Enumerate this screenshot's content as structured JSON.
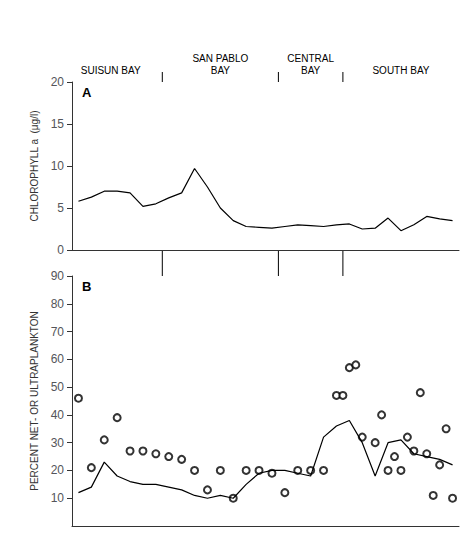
{
  "chart_data": [
    {
      "type": "line",
      "title": "A",
      "ylabel": "CHLOROPHYLL a  (μg/l)",
      "x": [
        1,
        2,
        3,
        4,
        5,
        6,
        7,
        8,
        9,
        10,
        11,
        12,
        13,
        14,
        15,
        16,
        17,
        18,
        19,
        20,
        21,
        22,
        23,
        24,
        25,
        26,
        27,
        28,
        29,
        30
      ],
      "values": [
        5.8,
        6.3,
        7.0,
        7.0,
        6.8,
        5.2,
        5.5,
        6.2,
        6.8,
        9.7,
        7.5,
        5.0,
        3.5,
        2.8,
        2.7,
        2.6,
        2.8,
        3.0,
        2.9,
        2.8,
        3.0,
        3.1,
        2.5,
        2.6,
        3.8,
        2.3,
        3.0,
        4.0,
        3.7,
        3.5
      ],
      "color": "#000000",
      "xlim": [
        0.5,
        30.5
      ],
      "ylim": [
        0,
        20
      ],
      "yticks": [
        0,
        5,
        10,
        15,
        20
      ],
      "grid": false,
      "tick_labels": "y",
      "annotations": [
        {
          "text": "SUISUN BAY",
          "x": 3.5
        },
        {
          "text": "SAN PABLO\nBAY",
          "x": 12.0
        },
        {
          "text": "CENTRAL\nBAY",
          "x": 19.0
        },
        {
          "text": "SOUTH BAY",
          "x": 26.0
        }
      ],
      "dividers": [
        7.5,
        16.5,
        21.5
      ]
    },
    {
      "type": "line",
      "title": "B",
      "ylabel": "PERCENT NET- OR ULTRAPLANKTON",
      "series": [
        {
          "type": "line",
          "color": "#000000",
          "x": [
            1,
            2,
            3,
            4,
            5,
            6,
            7,
            8,
            9,
            10,
            11,
            12,
            13,
            14,
            15,
            16,
            17,
            18,
            19,
            20,
            21,
            22,
            23,
            24,
            25,
            26,
            27,
            28,
            29,
            30
          ],
          "values": [
            12,
            14,
            23,
            18,
            16,
            15,
            15,
            14,
            13,
            11,
            10,
            11,
            10,
            15,
            19,
            20,
            20,
            19,
            18,
            32,
            36,
            38,
            30,
            18,
            30,
            31,
            26,
            25,
            24,
            22
          ]
        },
        {
          "type": "scatter",
          "color": "#000000",
          "marker": "open-circle",
          "x": [
            1,
            2,
            3,
            4,
            5,
            6,
            7,
            8,
            9,
            10,
            11,
            12,
            13,
            14,
            15,
            16,
            17,
            18,
            19,
            20,
            21,
            22,
            23,
            24,
            25,
            26,
            27,
            28,
            29
          ],
          "values": [
            46,
            21,
            31,
            39,
            27,
            27,
            26,
            25,
            24,
            20,
            13,
            20,
            10,
            20,
            20,
            19,
            12,
            20,
            20,
            20,
            47,
            57,
            32,
            30,
            20,
            20,
            27,
            26,
            22
          ]
        },
        {
          "type": "scatter",
          "color": "#000000",
          "marker": "open-circle",
          "x": [
            21.5,
            22.5,
            24.5,
            25.5,
            26.5,
            27.5,
            28.5,
            29.5,
            30.0
          ],
          "values": [
            47,
            58,
            40,
            25,
            32,
            48,
            11,
            35,
            10
          ]
        }
      ],
      "xlim": [
        0.5,
        30.5
      ],
      "ylim": [
        0,
        90
      ],
      "yticks": [
        10,
        20,
        30,
        40,
        50,
        60,
        70,
        80,
        90
      ],
      "grid": false,
      "tick_labels": "y"
    }
  ]
}
